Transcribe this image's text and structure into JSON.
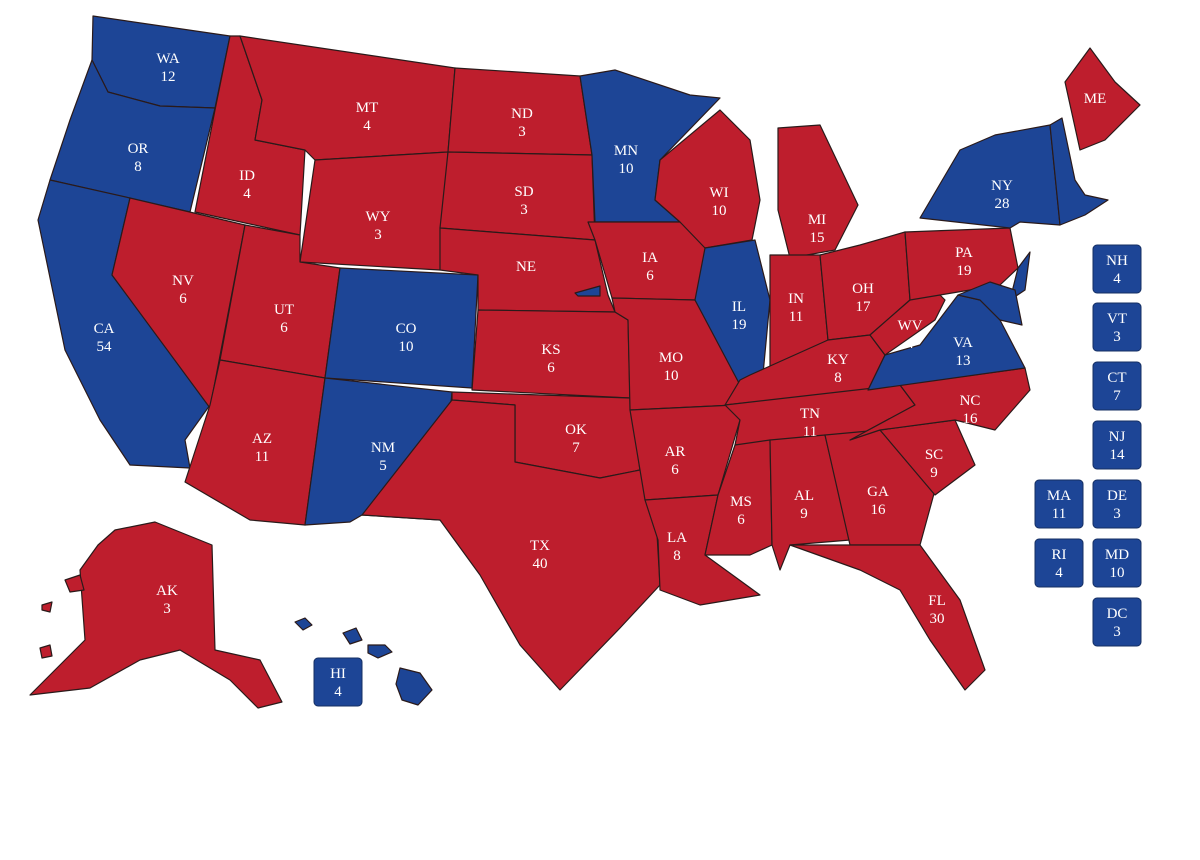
{
  "colors": {
    "red": "#BE1E2D",
    "blue": "#1D4596",
    "border": "#2a1a1a"
  },
  "states": [
    {
      "abbr": "WA",
      "ev": "12",
      "party": "blue"
    },
    {
      "abbr": "OR",
      "ev": "8",
      "party": "blue"
    },
    {
      "abbr": "CA",
      "ev": "54",
      "party": "blue"
    },
    {
      "abbr": "ID",
      "ev": "4",
      "party": "red"
    },
    {
      "abbr": "NV",
      "ev": "6",
      "party": "red"
    },
    {
      "abbr": "MT",
      "ev": "4",
      "party": "red"
    },
    {
      "abbr": "WY",
      "ev": "3",
      "party": "red"
    },
    {
      "abbr": "UT",
      "ev": "6",
      "party": "red"
    },
    {
      "abbr": "AZ",
      "ev": "11",
      "party": "red"
    },
    {
      "abbr": "CO",
      "ev": "10",
      "party": "blue"
    },
    {
      "abbr": "NM",
      "ev": "5",
      "party": "blue"
    },
    {
      "abbr": "ND",
      "ev": "3",
      "party": "red"
    },
    {
      "abbr": "SD",
      "ev": "3",
      "party": "red"
    },
    {
      "abbr": "NE",
      "ev": "",
      "party": "red"
    },
    {
      "abbr": "KS",
      "ev": "6",
      "party": "red"
    },
    {
      "abbr": "OK",
      "ev": "7",
      "party": "red"
    },
    {
      "abbr": "TX",
      "ev": "40",
      "party": "red"
    },
    {
      "abbr": "MN",
      "ev": "10",
      "party": "blue"
    },
    {
      "abbr": "IA",
      "ev": "6",
      "party": "red"
    },
    {
      "abbr": "MO",
      "ev": "10",
      "party": "red"
    },
    {
      "abbr": "AR",
      "ev": "6",
      "party": "red"
    },
    {
      "abbr": "LA",
      "ev": "8",
      "party": "red"
    },
    {
      "abbr": "WI",
      "ev": "10",
      "party": "red"
    },
    {
      "abbr": "IL",
      "ev": "19",
      "party": "blue"
    },
    {
      "abbr": "MI",
      "ev": "15",
      "party": "red"
    },
    {
      "abbr": "IN",
      "ev": "11",
      "party": "red"
    },
    {
      "abbr": "OH",
      "ev": "17",
      "party": "red"
    },
    {
      "abbr": "KY",
      "ev": "8",
      "party": "red"
    },
    {
      "abbr": "TN",
      "ev": "11",
      "party": "red"
    },
    {
      "abbr": "MS",
      "ev": "6",
      "party": "red"
    },
    {
      "abbr": "AL",
      "ev": "9",
      "party": "red"
    },
    {
      "abbr": "GA",
      "ev": "16",
      "party": "red"
    },
    {
      "abbr": "FL",
      "ev": "30",
      "party": "red"
    },
    {
      "abbr": "SC",
      "ev": "9",
      "party": "red"
    },
    {
      "abbr": "NC",
      "ev": "16",
      "party": "red"
    },
    {
      "abbr": "VA",
      "ev": "13",
      "party": "blue"
    },
    {
      "abbr": "WV",
      "ev": "4",
      "party": "red"
    },
    {
      "abbr": "PA",
      "ev": "19",
      "party": "red"
    },
    {
      "abbr": "NY",
      "ev": "28",
      "party": "blue"
    },
    {
      "abbr": "ME",
      "ev": "",
      "party": "red"
    },
    {
      "abbr": "AK",
      "ev": "3",
      "party": "red"
    }
  ],
  "boxes": [
    {
      "abbr": "HI",
      "ev": "4",
      "party": "blue"
    },
    {
      "abbr": "NH",
      "ev": "4",
      "party": "blue"
    },
    {
      "abbr": "VT",
      "ev": "3",
      "party": "blue"
    },
    {
      "abbr": "CT",
      "ev": "7",
      "party": "blue"
    },
    {
      "abbr": "NJ",
      "ev": "14",
      "party": "blue"
    },
    {
      "abbr": "MA",
      "ev": "11",
      "party": "blue"
    },
    {
      "abbr": "DE",
      "ev": "3",
      "party": "blue"
    },
    {
      "abbr": "RI",
      "ev": "4",
      "party": "blue"
    },
    {
      "abbr": "MD",
      "ev": "10",
      "party": "blue"
    },
    {
      "abbr": "DC",
      "ev": "3",
      "party": "blue"
    }
  ]
}
